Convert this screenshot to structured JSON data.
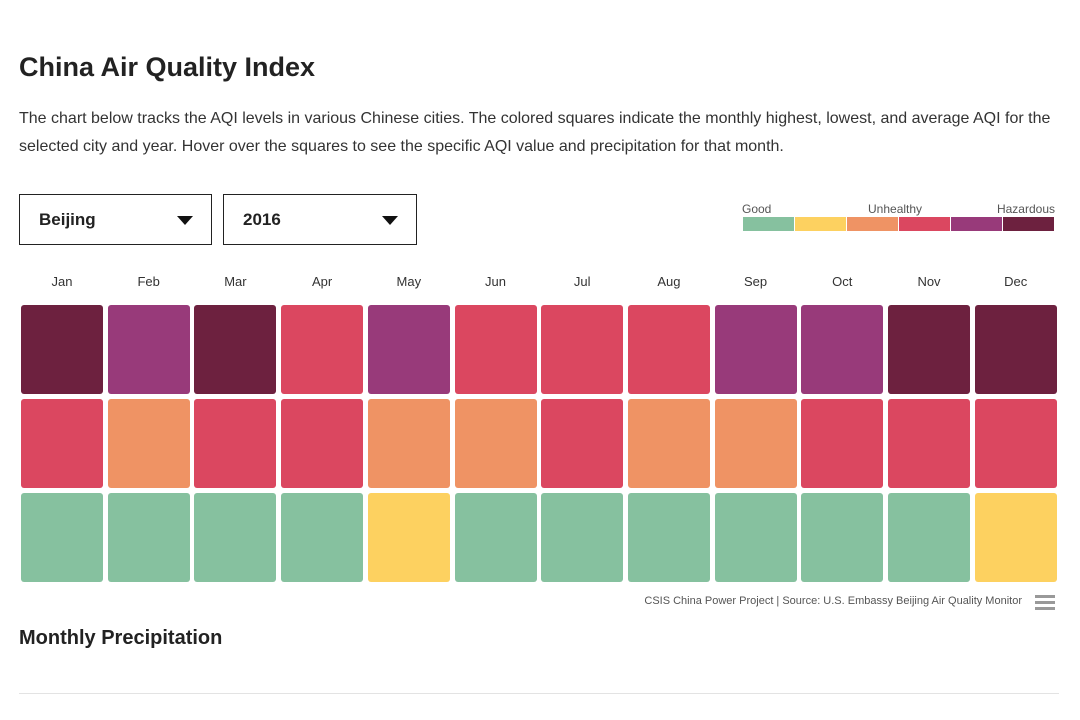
{
  "header": {
    "title": "China Air Quality Index",
    "description": "The chart below tracks the AQI levels in various Chinese cities. The colored squares indicate the monthly highest, lowest, and average AQI for the selected city and year. Hover over the squares to see the specific AQI value and precipitation for that month."
  },
  "controls": {
    "city": "Beijing",
    "year": "2016"
  },
  "legend": {
    "labels": [
      "Good",
      "Unhealthy",
      "Hazardous"
    ],
    "colors": [
      "#86c19f",
      "#fdd160",
      "#ef9364",
      "#db4760",
      "#983a7a",
      "#6d213f"
    ]
  },
  "months": [
    "Jan",
    "Feb",
    "Mar",
    "Apr",
    "May",
    "Jun",
    "Jul",
    "Aug",
    "Sep",
    "Oct",
    "Nov",
    "Dec"
  ],
  "grid": [
    [
      "#6d213f",
      "#983a7a",
      "#6d213f",
      "#db4760",
      "#983a7a",
      "#db4760",
      "#db4760",
      "#db4760",
      "#983a7a",
      "#983a7a",
      "#6d213f",
      "#6d213f"
    ],
    [
      "#db4760",
      "#ef9364",
      "#db4760",
      "#db4760",
      "#ef9364",
      "#ef9364",
      "#db4760",
      "#ef9364",
      "#ef9364",
      "#db4760",
      "#db4760",
      "#db4760"
    ],
    [
      "#86c19f",
      "#86c19f",
      "#86c19f",
      "#86c19f",
      "#fdd160",
      "#86c19f",
      "#86c19f",
      "#86c19f",
      "#86c19f",
      "#86c19f",
      "#86c19f",
      "#fdd160"
    ]
  ],
  "source": "CSIS China Power Project | Source: U.S. Embassy Beijing Air Quality Monitor",
  "section": "Monthly Precipitation"
}
